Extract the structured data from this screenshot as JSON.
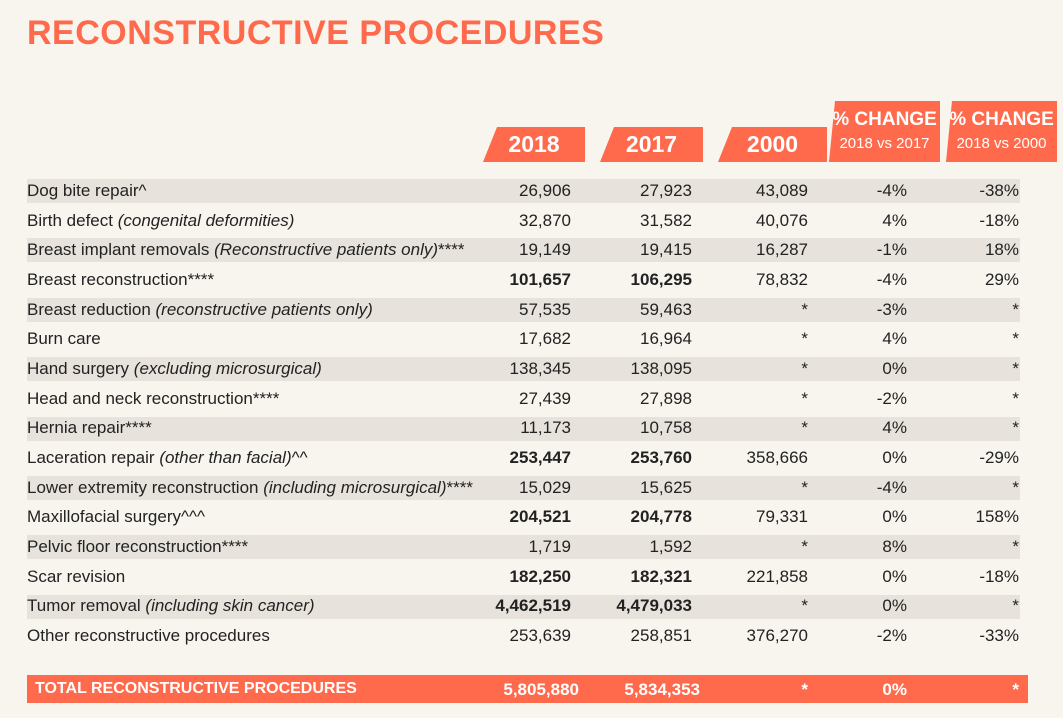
{
  "title": "RECONSTRUCTIVE PROCEDURES",
  "colors": {
    "accent": "#ff6a4c",
    "background": "#f8f5ef",
    "stripe": "#e7e3dc"
  },
  "headers": {
    "y2018": "2018",
    "y2017": "2017",
    "y2000": "2000",
    "pct1_top": "% CHANGE",
    "pct1_sub": "2018 vs 2017",
    "pct2_top": "% CHANGE",
    "pct2_sub": "2018 vs 2000"
  },
  "rows": [
    {
      "name": "Dog bite repair^",
      "note": "",
      "suffix": "",
      "v2018": "26,906",
      "v2017": "27,923",
      "v2000": "43,089",
      "p1": "-4%",
      "p2": "-38%",
      "bold": false
    },
    {
      "name": "Birth defect ",
      "note": "(congenital deformities)",
      "suffix": "",
      "v2018": "32,870",
      "v2017": "31,582",
      "v2000": "40,076",
      "p1": "4%",
      "p2": "-18%",
      "bold": false
    },
    {
      "name": "Breast implant removals ",
      "note": "(Reconstructive patients only)",
      "suffix": "****",
      "v2018": "19,149",
      "v2017": "19,415",
      "v2000": "16,287",
      "p1": "-1%",
      "p2": "18%",
      "bold": false
    },
    {
      "name": "Breast reconstruction****",
      "note": "",
      "suffix": "",
      "v2018": "101,657",
      "v2017": "106,295",
      "v2000": "78,832",
      "p1": "-4%",
      "p2": "29%",
      "bold": true
    },
    {
      "name": "Breast reduction ",
      "note": "(reconstructive patients only)",
      "suffix": "",
      "v2018": "57,535",
      "v2017": "59,463",
      "v2000": "*",
      "p1": "-3%",
      "p2": "*",
      "bold": false
    },
    {
      "name": "Burn care",
      "note": "",
      "suffix": "",
      "v2018": "17,682",
      "v2017": "16,964",
      "v2000": "*",
      "p1": "4%",
      "p2": "*",
      "bold": false
    },
    {
      "name": "Hand surgery ",
      "note": "(excluding microsurgical)",
      "suffix": "",
      "v2018": "138,345",
      "v2017": "138,095",
      "v2000": "*",
      "p1": "0%",
      "p2": "*",
      "bold": false
    },
    {
      "name": "Head and neck reconstruction****",
      "note": "",
      "suffix": "",
      "v2018": "27,439",
      "v2017": "27,898",
      "v2000": "*",
      "p1": "-2%",
      "p2": "*",
      "bold": false
    },
    {
      "name": "Hernia repair****",
      "note": "",
      "suffix": "",
      "v2018": "11,173",
      "v2017": "10,758",
      "v2000": "*",
      "p1": "4%",
      "p2": "*",
      "bold": false
    },
    {
      "name": "Laceration repair ",
      "note": "(other than facial)",
      "suffix": "^^",
      "v2018": "253,447",
      "v2017": "253,760",
      "v2000": "358,666",
      "p1": "0%",
      "p2": "-29%",
      "bold": true
    },
    {
      "name": "Lower extremity reconstruction ",
      "note": "(including microsurgical)",
      "suffix": "****",
      "v2018": "15,029",
      "v2017": "15,625",
      "v2000": "*",
      "p1": "-4%",
      "p2": "*",
      "bold": false
    },
    {
      "name": "Maxillofacial surgery^^^",
      "note": "",
      "suffix": "",
      "v2018": "204,521",
      "v2017": "204,778",
      "v2000": "79,331",
      "p1": "0%",
      "p2": "158%",
      "bold": true
    },
    {
      "name": "Pelvic floor reconstruction****",
      "note": "",
      "suffix": "",
      "v2018": "1,719",
      "v2017": "1,592",
      "v2000": "*",
      "p1": "8%",
      "p2": "*",
      "bold": false
    },
    {
      "name": "Scar revision",
      "note": "",
      "suffix": "",
      "v2018": "182,250",
      "v2017": "182,321",
      "v2000": "221,858",
      "p1": "0%",
      "p2": "-18%",
      "bold": true
    },
    {
      "name": "Tumor removal ",
      "note": "(including skin cancer)",
      "suffix": "",
      "v2018": "4,462,519",
      "v2017": "4,479,033",
      "v2000": "*",
      "p1": "0%",
      "p2": "*",
      "bold": true
    },
    {
      "name": "Other reconstructive procedures",
      "note": "",
      "suffix": "",
      "v2018": "253,639",
      "v2017": "258,851",
      "v2000": "376,270",
      "p1": "-2%",
      "p2": "-33%",
      "bold": false
    }
  ],
  "total": {
    "name": "TOTAL RECONSTRUCTIVE PROCEDURES",
    "v2018": "5,805,880",
    "v2017": "5,834,353",
    "v2000": "*",
    "p1": "0%",
    "p2": "*"
  }
}
